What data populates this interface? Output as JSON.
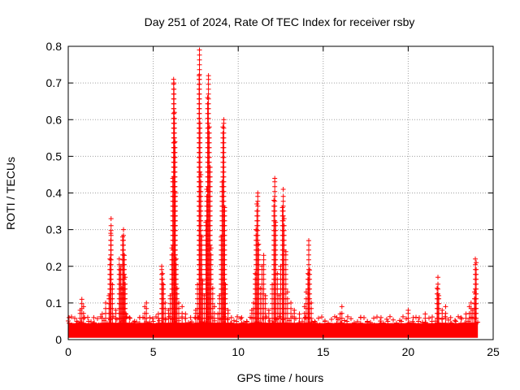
{
  "chart_data": {
    "type": "scatter",
    "title": "Day 251 of 2024, Rate Of TEC Index for receiver rsby",
    "xlabel": "GPS time / hours",
    "ylabel": "ROTI / TECUs",
    "xlim": [
      0,
      25
    ],
    "ylim": [
      0,
      0.8
    ],
    "xticks": [
      0,
      5,
      10,
      15,
      20,
      25
    ],
    "xtick_labels": [
      "0",
      "5",
      "10",
      "15",
      "20",
      "25"
    ],
    "yticks": [
      0,
      0.1,
      0.2,
      0.3,
      0.4,
      0.5,
      0.6,
      0.7,
      0.8
    ],
    "ytick_labels": [
      "0",
      "0.1",
      "0.2",
      "0.3",
      "0.4",
      "0.5",
      "0.6",
      "0.7",
      "0.8"
    ],
    "grid": true,
    "marker": "+",
    "marker_color": "#ff0000",
    "series": [
      {
        "name": "ROTI",
        "points": [
          [
            0.05,
            0.06
          ],
          [
            0.2,
            0.04
          ],
          [
            0.5,
            0.05
          ],
          [
            0.7,
            0.08
          ],
          [
            0.8,
            0.11
          ],
          [
            0.9,
            0.09
          ],
          [
            1.2,
            0.05
          ],
          [
            1.5,
            0.06
          ],
          [
            1.8,
            0.04
          ],
          [
            2.0,
            0.07
          ],
          [
            2.2,
            0.1
          ],
          [
            2.4,
            0.12
          ],
          [
            2.45,
            0.22
          ],
          [
            2.5,
            0.29
          ],
          [
            2.52,
            0.33
          ],
          [
            2.6,
            0.15
          ],
          [
            2.8,
            0.08
          ],
          [
            3.0,
            0.22
          ],
          [
            3.05,
            0.19
          ],
          [
            3.1,
            0.2
          ],
          [
            3.15,
            0.14
          ],
          [
            3.2,
            0.28
          ],
          [
            3.25,
            0.3
          ],
          [
            3.3,
            0.23
          ],
          [
            3.35,
            0.17
          ],
          [
            3.4,
            0.07
          ],
          [
            3.6,
            0.06
          ],
          [
            3.9,
            0.05
          ],
          [
            4.2,
            0.06
          ],
          [
            4.5,
            0.09
          ],
          [
            4.6,
            0.1
          ],
          [
            4.8,
            0.06
          ],
          [
            5.0,
            0.05
          ],
          [
            5.3,
            0.07
          ],
          [
            5.5,
            0.2
          ],
          [
            5.55,
            0.18
          ],
          [
            5.6,
            0.15
          ],
          [
            5.7,
            0.1
          ],
          [
            5.9,
            0.08
          ],
          [
            6.0,
            0.12
          ],
          [
            6.1,
            0.25
          ],
          [
            6.15,
            0.44
          ],
          [
            6.2,
            0.71
          ],
          [
            6.22,
            0.7
          ],
          [
            6.25,
            0.62
          ],
          [
            6.28,
            0.54
          ],
          [
            6.3,
            0.4
          ],
          [
            6.35,
            0.22
          ],
          [
            6.4,
            0.14
          ],
          [
            6.5,
            0.1
          ],
          [
            6.7,
            0.09
          ],
          [
            6.9,
            0.07
          ],
          [
            7.2,
            0.06
          ],
          [
            7.5,
            0.08
          ],
          [
            7.6,
            0.15
          ],
          [
            7.7,
            0.72
          ],
          [
            7.72,
            0.79
          ],
          [
            7.75,
            0.59
          ],
          [
            7.8,
            0.45
          ],
          [
            7.85,
            0.28
          ],
          [
            7.9,
            0.16
          ],
          [
            8.0,
            0.12
          ],
          [
            8.1,
            0.32
          ],
          [
            8.15,
            0.41
          ],
          [
            8.2,
            0.66
          ],
          [
            8.25,
            0.72
          ],
          [
            8.3,
            0.58
          ],
          [
            8.35,
            0.47
          ],
          [
            8.4,
            0.25
          ],
          [
            8.5,
            0.14
          ],
          [
            8.6,
            0.09
          ],
          [
            8.8,
            0.07
          ],
          [
            8.9,
            0.12
          ],
          [
            9.0,
            0.28
          ],
          [
            9.05,
            0.43
          ],
          [
            9.1,
            0.58
          ],
          [
            9.15,
            0.6
          ],
          [
            9.2,
            0.36
          ],
          [
            9.25,
            0.15
          ],
          [
            9.4,
            0.08
          ],
          [
            9.6,
            0.06
          ],
          [
            9.9,
            0.05
          ],
          [
            10.2,
            0.06
          ],
          [
            10.5,
            0.05
          ],
          [
            10.8,
            0.08
          ],
          [
            10.9,
            0.1
          ],
          [
            11.0,
            0.18
          ],
          [
            11.05,
            0.3
          ],
          [
            11.1,
            0.37
          ],
          [
            11.15,
            0.4
          ],
          [
            11.2,
            0.26
          ],
          [
            11.3,
            0.14
          ],
          [
            11.4,
            0.2
          ],
          [
            11.5,
            0.23
          ],
          [
            11.6,
            0.12
          ],
          [
            11.8,
            0.08
          ],
          [
            12.0,
            0.15
          ],
          [
            12.1,
            0.38
          ],
          [
            12.15,
            0.44
          ],
          [
            12.2,
            0.32
          ],
          [
            12.3,
            0.18
          ],
          [
            12.4,
            0.12
          ],
          [
            12.5,
            0.2
          ],
          [
            12.6,
            0.36
          ],
          [
            12.65,
            0.41
          ],
          [
            12.7,
            0.33
          ],
          [
            12.8,
            0.24
          ],
          [
            12.9,
            0.13
          ],
          [
            13.1,
            0.1
          ],
          [
            13.3,
            0.08
          ],
          [
            13.6,
            0.07
          ],
          [
            13.9,
            0.09
          ],
          [
            14.0,
            0.13
          ],
          [
            14.1,
            0.18
          ],
          [
            14.15,
            0.27
          ],
          [
            14.2,
            0.19
          ],
          [
            14.3,
            0.1
          ],
          [
            14.5,
            0.05
          ],
          [
            14.8,
            0.04
          ],
          [
            15.1,
            0.05
          ],
          [
            15.5,
            0.04
          ],
          [
            15.8,
            0.06
          ],
          [
            16.0,
            0.07
          ],
          [
            16.1,
            0.09
          ],
          [
            16.4,
            0.05
          ],
          [
            16.8,
            0.04
          ],
          [
            17.2,
            0.06
          ],
          [
            17.6,
            0.05
          ],
          [
            18.0,
            0.04
          ],
          [
            18.4,
            0.06
          ],
          [
            18.8,
            0.05
          ],
          [
            19.2,
            0.04
          ],
          [
            19.6,
            0.05
          ],
          [
            20.0,
            0.08
          ],
          [
            20.3,
            0.06
          ],
          [
            20.6,
            0.05
          ],
          [
            21.0,
            0.07
          ],
          [
            21.4,
            0.05
          ],
          [
            21.7,
            0.14
          ],
          [
            21.75,
            0.17
          ],
          [
            21.8,
            0.12
          ],
          [
            22.0,
            0.08
          ],
          [
            22.2,
            0.09
          ],
          [
            22.5,
            0.06
          ],
          [
            22.8,
            0.05
          ],
          [
            23.1,
            0.06
          ],
          [
            23.4,
            0.07
          ],
          [
            23.6,
            0.09
          ],
          [
            23.7,
            0.1
          ],
          [
            23.8,
            0.08
          ],
          [
            23.9,
            0.13
          ],
          [
            23.95,
            0.22
          ],
          [
            24.0,
            0.21
          ]
        ]
      }
    ],
    "fill_band": {
      "description": "dense band of overlapping markers near the baseline",
      "x": [
        0,
        24.1
      ],
      "y_low": 0.005,
      "y_high": 0.045
    }
  }
}
